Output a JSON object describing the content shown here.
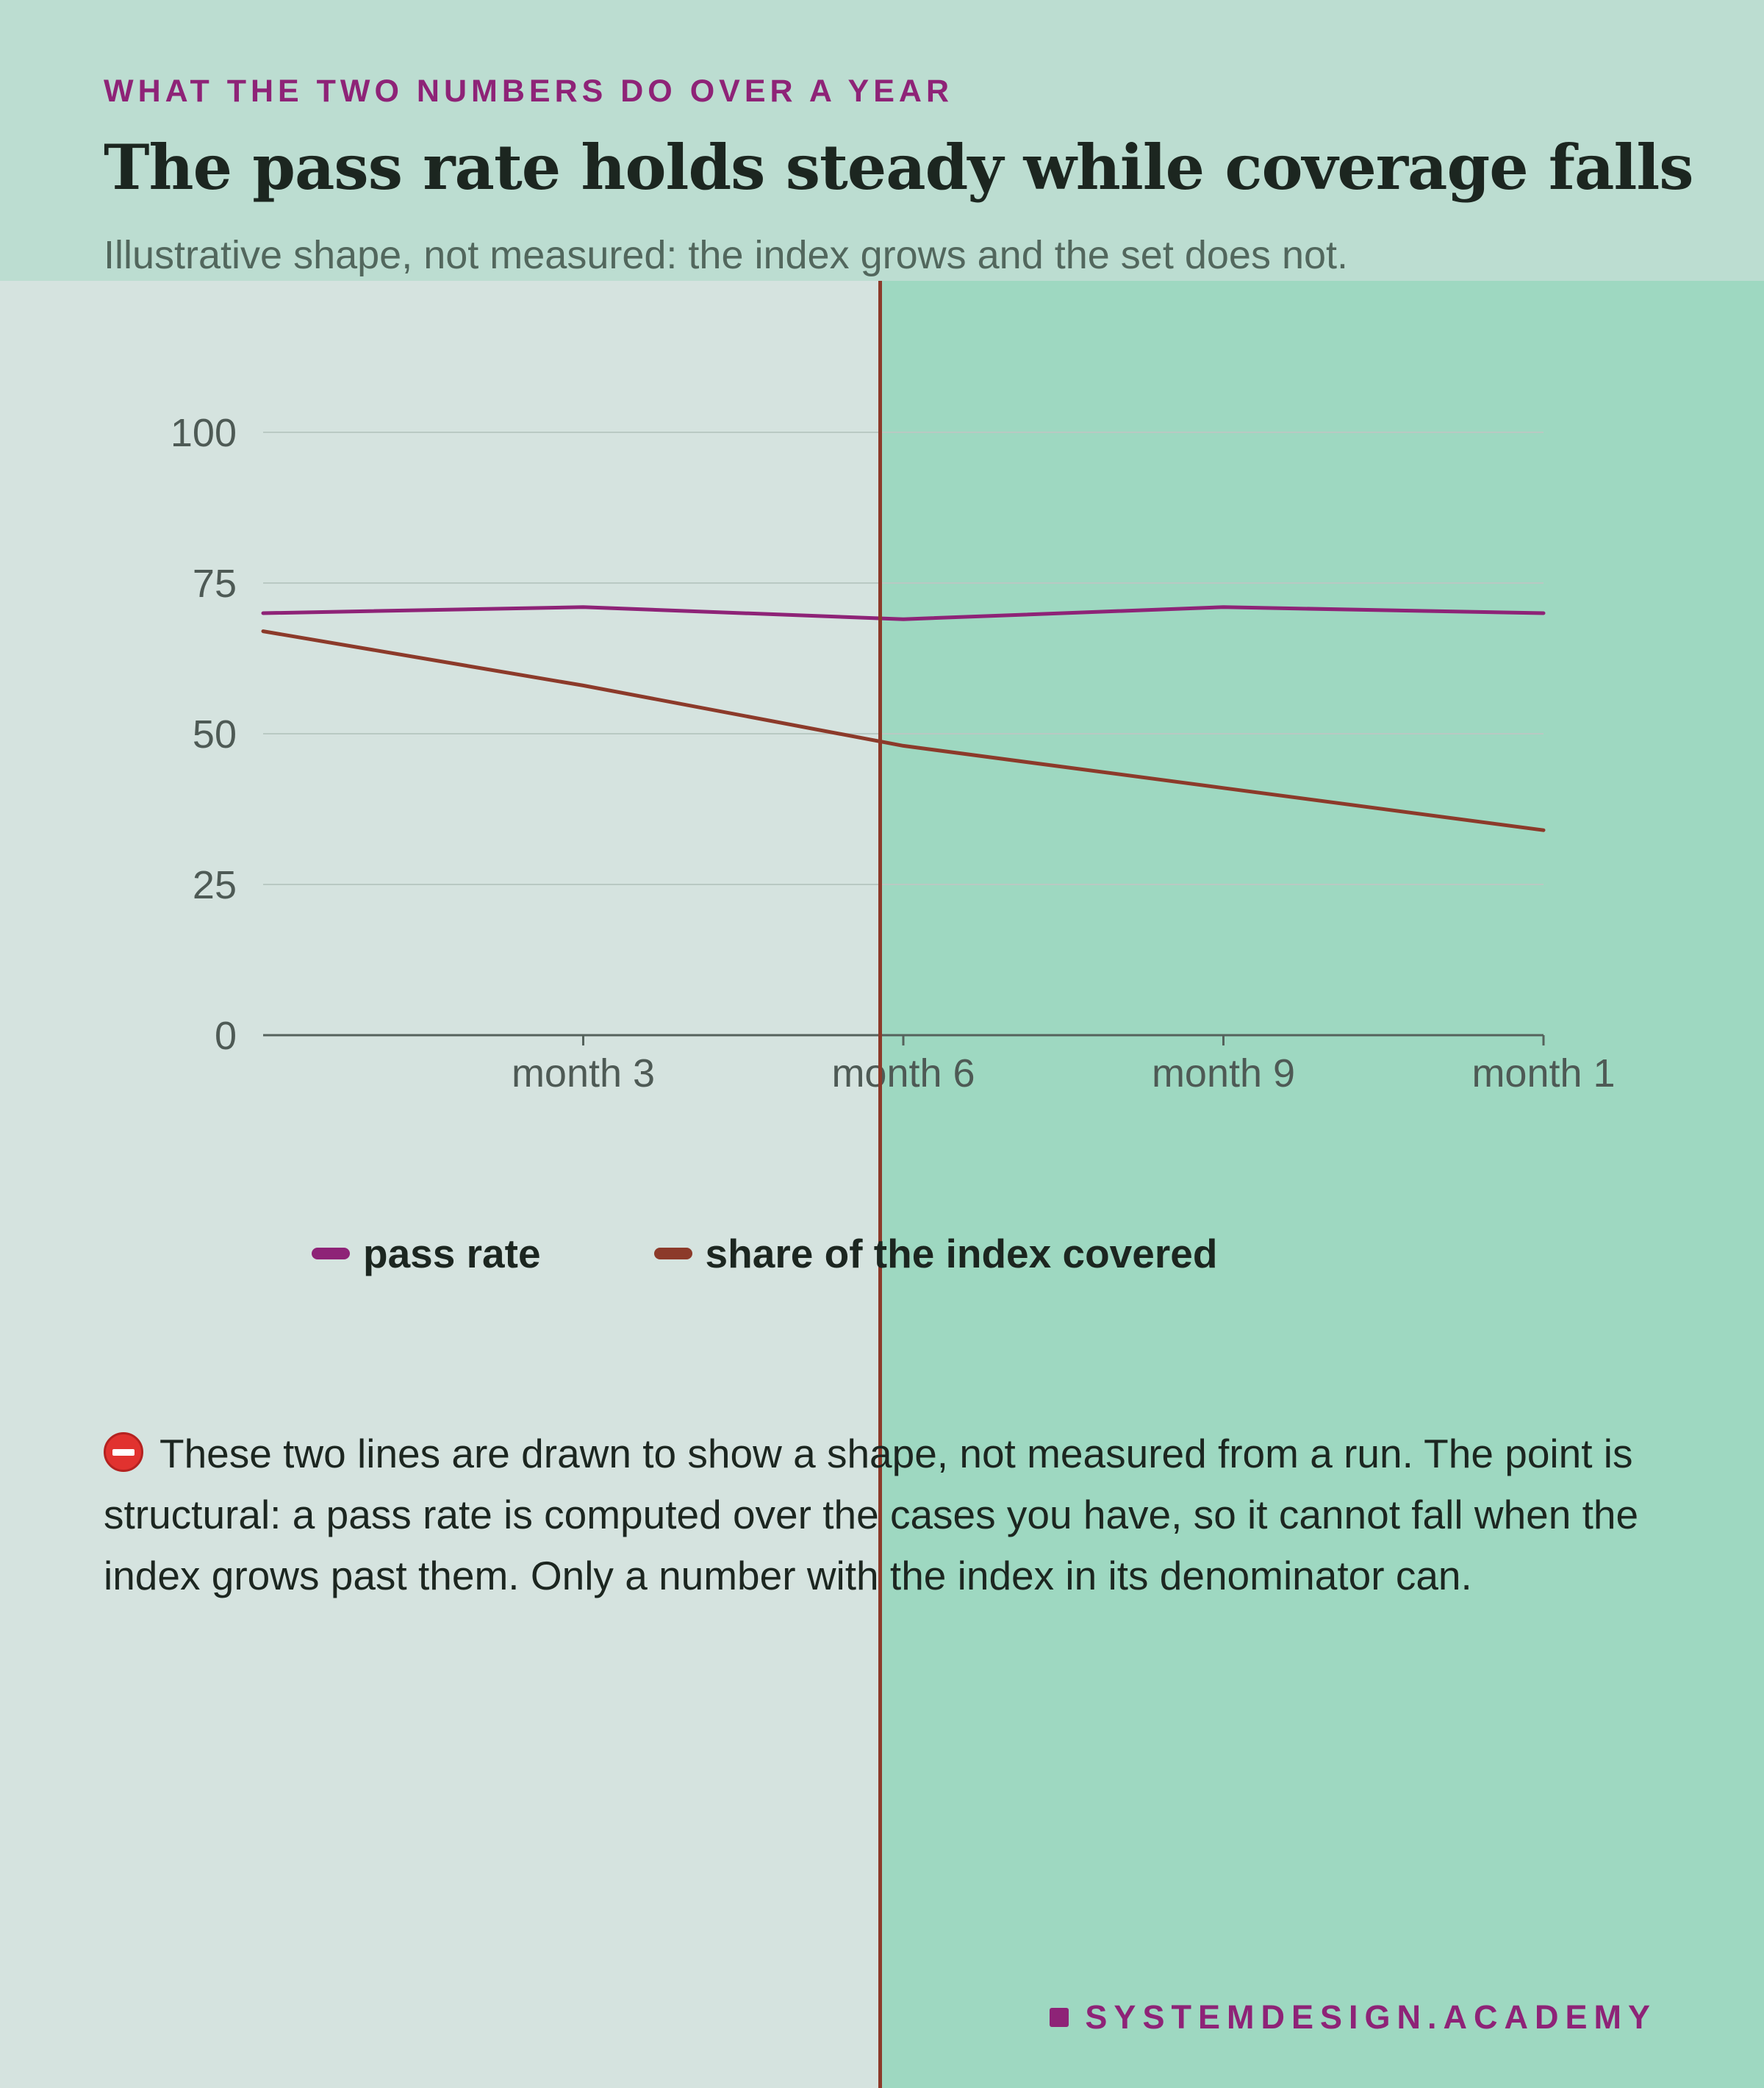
{
  "eyebrow": "WHAT THE TWO NUMBERS DO OVER A YEAR",
  "title": "The pass rate holds steady while coverage falls",
  "subtitle": "Illustrative shape, not measured: the index grows and the set does not.",
  "chart_data": {
    "type": "line",
    "x": [
      0,
      3,
      6,
      9,
      12
    ],
    "x_tick_labels": [
      "month 3",
      "month 6",
      "month 9",
      "month 1"
    ],
    "y_ticks": [
      0,
      25,
      50,
      75,
      100
    ],
    "ylim": [
      0,
      110
    ],
    "grid": true,
    "legend_position": "bottom",
    "series": [
      {
        "name": "pass rate",
        "color": "#8e2377",
        "values": [
          70,
          71,
          69,
          71,
          70
        ]
      },
      {
        "name": "share of the index covered",
        "color": "#8c3a2a",
        "values": [
          67,
          58,
          48,
          41,
          34
        ]
      }
    ]
  },
  "legend": {
    "pass_rate": "pass rate",
    "coverage": "share of the index covered"
  },
  "note": {
    "icon": "no-entry-icon",
    "text": "These two lines are drawn to show a shape, not measured from a run. The point is structural: a pass rate is computed over the cases you have, so it cannot fall when the index grows past them. Only a number with the index in its denominator can."
  },
  "footer": "SYSTEMDESIGN.ACADEMY",
  "colors": {
    "accent": "#8e2377",
    "coverage_line": "#8c3a2a",
    "left_background": "#d5e3df",
    "right_background": "#9ed8c1"
  }
}
